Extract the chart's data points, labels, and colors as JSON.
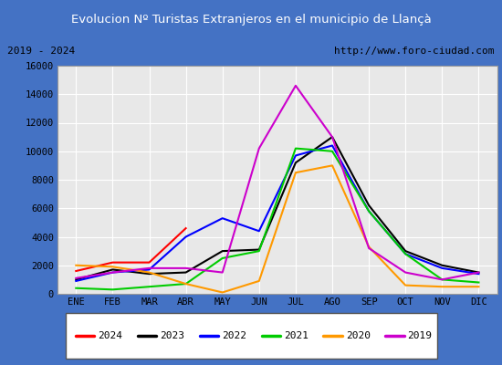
{
  "title": "Evolucion Nº Turistas Extranjeros en el municipio de Llançà",
  "subtitle_left": "2019 - 2024",
  "subtitle_right": "http://www.foro-ciudad.com",
  "months": [
    "ENE",
    "FEB",
    "MAR",
    "ABR",
    "MAY",
    "JUN",
    "JUL",
    "AGO",
    "SEP",
    "OCT",
    "NOV",
    "DIC"
  ],
  "ylim": [
    0,
    16000
  ],
  "yticks": [
    0,
    2000,
    4000,
    6000,
    8000,
    10000,
    12000,
    14000,
    16000
  ],
  "series": {
    "2024": {
      "color": "#ff0000",
      "linewidth": 1.5,
      "data": [
        1600,
        2200,
        2200,
        4600,
        null,
        null,
        null,
        null,
        null,
        null,
        null,
        null
      ]
    },
    "2023": {
      "color": "#000000",
      "linewidth": 1.5,
      "data": [
        1000,
        1700,
        1400,
        1500,
        3000,
        3100,
        9200,
        11000,
        6200,
        3000,
        2000,
        1500
      ]
    },
    "2022": {
      "color": "#0000ff",
      "linewidth": 1.5,
      "data": [
        900,
        1500,
        1700,
        4000,
        5300,
        4400,
        9700,
        10400,
        5800,
        2800,
        1800,
        1400
      ]
    },
    "2021": {
      "color": "#00cc00",
      "linewidth": 1.5,
      "data": [
        400,
        300,
        500,
        700,
        2500,
        3000,
        10200,
        10000,
        5800,
        2800,
        1000,
        800
      ]
    },
    "2020": {
      "color": "#ff9900",
      "linewidth": 1.5,
      "data": [
        2000,
        1900,
        1500,
        700,
        100,
        900,
        8500,
        9000,
        3300,
        600,
        500,
        500
      ]
    },
    "2019": {
      "color": "#cc00cc",
      "linewidth": 1.5,
      "data": [
        1100,
        1500,
        1800,
        1800,
        1500,
        10200,
        14600,
        11000,
        3200,
        1500,
        1000,
        1500
      ]
    }
  },
  "title_bgcolor": "#4472c4",
  "title_color": "#ffffff",
  "plot_bgcolor": "#e8e8e8",
  "border_color": "#4472c4",
  "grid_color": "#ffffff",
  "subtitle_bgcolor": "#d8d8d8",
  "legend_order": [
    "2024",
    "2023",
    "2022",
    "2021",
    "2020",
    "2019"
  ]
}
